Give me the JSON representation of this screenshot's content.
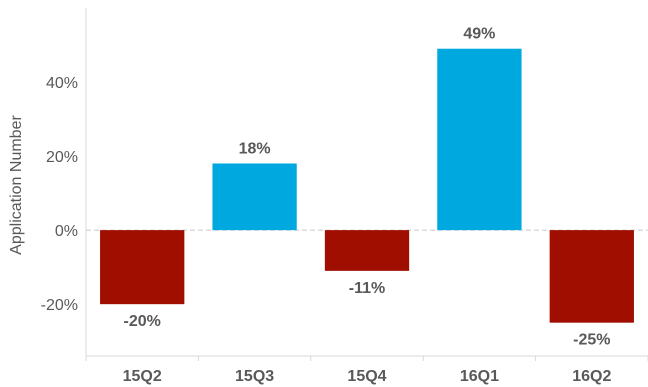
{
  "chart_data": {
    "type": "bar",
    "categories": [
      "15Q2",
      "15Q3",
      "15Q4",
      "16Q1",
      "16Q2"
    ],
    "values": [
      -20,
      18,
      -11,
      49,
      -25
    ],
    "data_labels": [
      "-20%",
      "18%",
      "-11%",
      "49%",
      "-25%"
    ],
    "ylabel": "Application Number",
    "xlabel": "",
    "ylim": [
      -34,
      60
    ],
    "yticks": [
      -20,
      0,
      20,
      40
    ],
    "ytick_labels": [
      "-20%",
      "0%",
      "20%",
      "40%"
    ],
    "grid": false,
    "colors": {
      "positive": "#00a8e0",
      "negative": "#a00e00"
    }
  }
}
